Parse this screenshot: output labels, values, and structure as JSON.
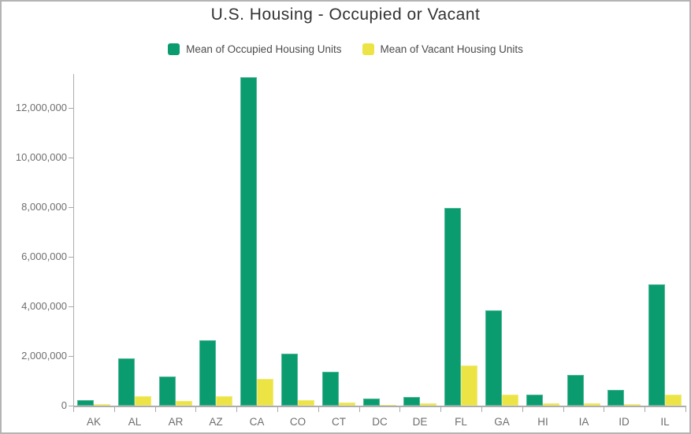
{
  "title": "U.S. Housing - Occupied or Vacant",
  "chart_data": {
    "type": "bar",
    "title": "U.S. Housing - Occupied or Vacant",
    "categories": [
      "AK",
      "AL",
      "AR",
      "AZ",
      "CA",
      "CO",
      "CT",
      "DC",
      "DE",
      "FL",
      "GA",
      "HI",
      "IA",
      "ID",
      "IL"
    ],
    "series": [
      {
        "key": "occupied",
        "name": "Mean of Occupied Housing Units",
        "color": "#0a9b6e",
        "values": [
          230000,
          1900000,
          1160000,
          2650000,
          13250000,
          2110000,
          1380000,
          270000,
          350000,
          7980000,
          3850000,
          430000,
          1250000,
          620000,
          4900000
        ]
      },
      {
        "key": "vacant",
        "name": "Mean of Vacant Housing Units",
        "color": "#ece445",
        "values": [
          65000,
          380000,
          200000,
          390000,
          1090000,
          210000,
          130000,
          45000,
          80000,
          1610000,
          460000,
          80000,
          110000,
          75000,
          460000
        ]
      }
    ],
    "xlabel": "",
    "ylabel": "",
    "ylim": [
      0,
      13333333
    ],
    "yticks": [
      0,
      2000000,
      4000000,
      6000000,
      8000000,
      10000000,
      12000000
    ],
    "grid": false,
    "legend_position": "top"
  },
  "colors": {
    "occupied": "#0a9b6e",
    "vacant": "#ece445",
    "axis": "#adadad",
    "labels": "#6e6e6e",
    "title_text": "#323232",
    "border": "#b4b4b4"
  }
}
